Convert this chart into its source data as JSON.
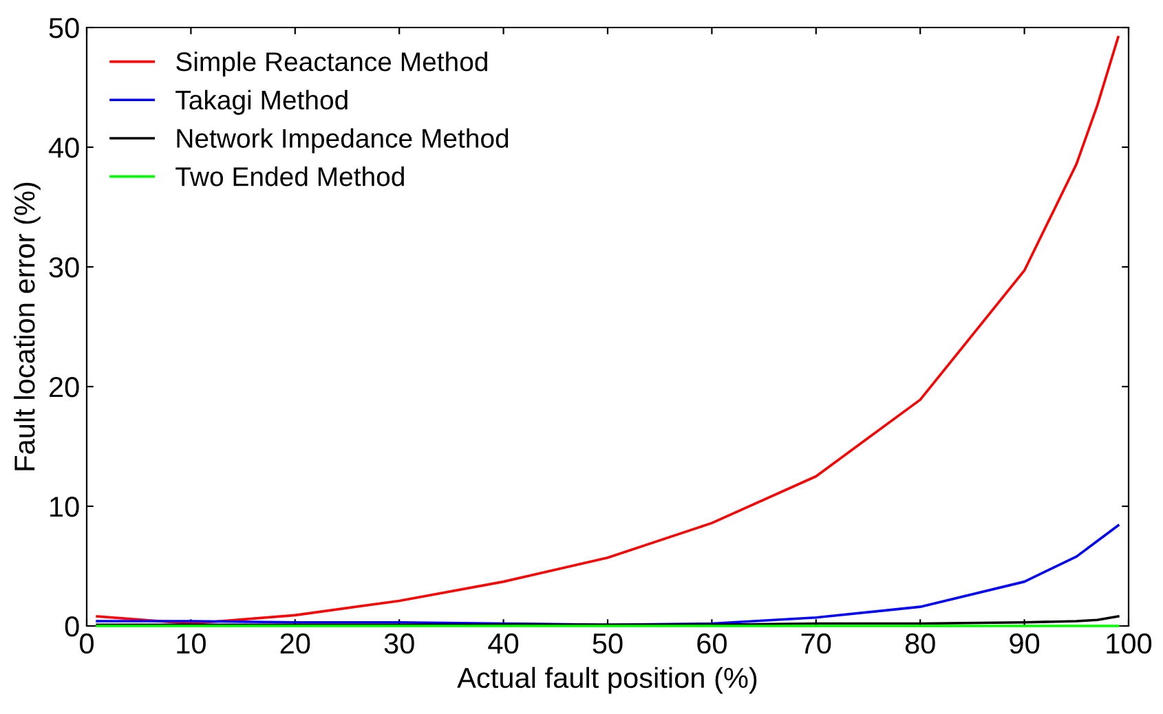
{
  "chart_data": {
    "type": "line",
    "xlabel": "Actual fault position (%)",
    "ylabel": "Fault location error (%)",
    "x": [
      1,
      10,
      20,
      30,
      40,
      50,
      60,
      70,
      80,
      90,
      95,
      97,
      99
    ],
    "series": [
      {
        "name": "Simple Reactance Method",
        "color": "#ff0000",
        "values": [
          0.8,
          0.2,
          0.9,
          2.1,
          3.7,
          5.7,
          8.6,
          12.5,
          18.9,
          29.7,
          38.6,
          43.5,
          49.2
        ]
      },
      {
        "name": "Takagi Method",
        "color": "#0000ff",
        "values": [
          0.4,
          0.4,
          0.3,
          0.3,
          0.2,
          0.1,
          0.2,
          0.7,
          1.6,
          3.7,
          5.8,
          7.1,
          8.4
        ]
      },
      {
        "name": "Network Impedance Method",
        "color": "#000000",
        "values": [
          0.1,
          0.1,
          0.1,
          0.1,
          0.1,
          0.1,
          0.1,
          0.2,
          0.2,
          0.3,
          0.4,
          0.5,
          0.8
        ]
      },
      {
        "name": "Two Ended Method",
        "color": "#00ff00",
        "values": [
          0.0,
          0.0,
          0.0,
          0.0,
          0.0,
          0.0,
          0.0,
          0.0,
          0.0,
          0.0,
          0.0,
          0.0,
          0.0
        ]
      }
    ],
    "xlim": [
      0,
      100
    ],
    "xticks": [
      0,
      10,
      20,
      30,
      40,
      50,
      60,
      70,
      80,
      90,
      100
    ],
    "ylim": [
      0,
      50
    ],
    "yticks": [
      0,
      10,
      20,
      30,
      40,
      50
    ],
    "grid": false,
    "legend": "top left",
    "marker": "none",
    "line_style": "solid"
  }
}
